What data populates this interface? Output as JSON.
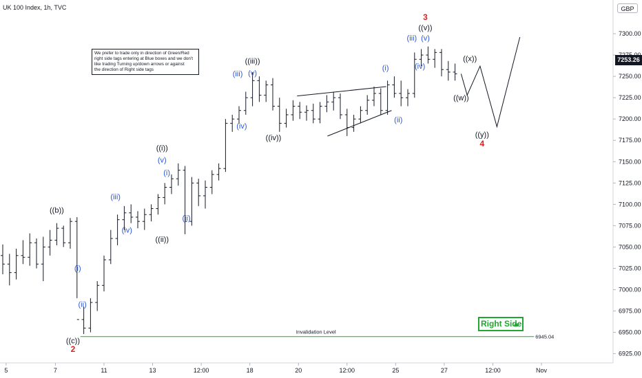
{
  "header": {
    "title": "UK 100 Index, 1h, TVC"
  },
  "currency": "GBP",
  "last_price": "7253.26",
  "note": "We prefer to trade only in direction of Green/Red\nright side tags entering at Blue boxes and we don't\nlike trading Turning up/down arrows or against\nthe direction of Right side tags",
  "right_side": {
    "label": "Right Side",
    "arrow": "▲"
  },
  "colors": {
    "bar": "#131722",
    "blue": "#2a57d8",
    "red": "#e02020",
    "green": "#1fa82f"
  },
  "chart_data": {
    "type": "ohlc",
    "ylim": [
      6915,
      7325
    ],
    "yticks": [
      "6925.00",
      "6950.00",
      "6975.00",
      "7000.00",
      "7025.00",
      "7050.00",
      "7075.00",
      "7100.00",
      "7125.00",
      "7150.00",
      "7175.00",
      "7200.00",
      "7225.00",
      "7250.00",
      "7275.00",
      "7300.00"
    ],
    "xticks": [
      {
        "label": "5",
        "x": 0.5
      },
      {
        "label": "7",
        "x": 7.8
      },
      {
        "label": "11",
        "x": 15
      },
      {
        "label": "13",
        "x": 22.2
      },
      {
        "label": "12:00",
        "x": 29.4
      },
      {
        "label": "18",
        "x": 36.6
      },
      {
        "label": "20",
        "x": 43.8
      },
      {
        "label": "12:00",
        "x": 51
      },
      {
        "label": "25",
        "x": 58.2
      },
      {
        "label": "27",
        "x": 65.4
      },
      {
        "label": "12:00",
        "x": 72.6
      },
      {
        "label": "Nov",
        "x": 79.8
      }
    ],
    "series": [
      {
        "values": [
          [
            7040,
            7053,
            7018,
            7030
          ],
          [
            7030,
            7042,
            7005,
            7020
          ],
          [
            7020,
            7048,
            7012,
            7040
          ],
          [
            7040,
            7058,
            7030,
            7038
          ],
          [
            7038,
            7066,
            7028,
            7055
          ],
          [
            7055,
            7060,
            7025,
            7030
          ],
          [
            7030,
            7062,
            7010,
            7050
          ],
          [
            7050,
            7070,
            7040,
            7058
          ],
          [
            7058,
            7078,
            7052,
            7072
          ],
          [
            7072,
            7075,
            7050,
            7055
          ],
          [
            7055,
            7084,
            7048,
            7080
          ],
          [
            7080,
            7085,
            6990,
            6965
          ],
          [
            6965,
            6980,
            6948,
            6955
          ],
          [
            6955,
            6990,
            6950,
            6985
          ],
          [
            6985,
            7010,
            6975,
            7005
          ],
          [
            7005,
            7040,
            6998,
            7035
          ],
          [
            7035,
            7070,
            7030,
            7060
          ],
          [
            7060,
            7088,
            7052,
            7082
          ],
          [
            7082,
            7098,
            7070,
            7090
          ],
          [
            7090,
            7100,
            7078,
            7085
          ],
          [
            7085,
            7092,
            7072,
            7080
          ],
          [
            7080,
            7095,
            7070,
            7088
          ],
          [
            7088,
            7100,
            7080,
            7095
          ],
          [
            7095,
            7112,
            7088,
            7108
          ],
          [
            7108,
            7125,
            7100,
            7120
          ],
          [
            7120,
            7135,
            7112,
            7130
          ],
          [
            7130,
            7148,
            7122,
            7140
          ],
          [
            7140,
            7145,
            7065,
            7080
          ],
          [
            7080,
            7132,
            7075,
            7125
          ],
          [
            7125,
            7130,
            7098,
            7110
          ],
          [
            7110,
            7128,
            7095,
            7120
          ],
          [
            7120,
            7140,
            7112,
            7135
          ],
          [
            7135,
            7148,
            7128,
            7142
          ],
          [
            7142,
            7200,
            7138,
            7195
          ],
          [
            7195,
            7205,
            7185,
            7200
          ],
          [
            7200,
            7215,
            7195,
            7210
          ],
          [
            7210,
            7232,
            7205,
            7225
          ],
          [
            7225,
            7255,
            7215,
            7245
          ],
          [
            7245,
            7250,
            7220,
            7228
          ],
          [
            7228,
            7245,
            7220,
            7240
          ],
          [
            7240,
            7248,
            7210,
            7215
          ],
          [
            7215,
            7225,
            7185,
            7195
          ],
          [
            7195,
            7212,
            7190,
            7205
          ],
          [
            7205,
            7222,
            7198,
            7215
          ],
          [
            7215,
            7220,
            7200,
            7208
          ],
          [
            7208,
            7216,
            7198,
            7210
          ],
          [
            7210,
            7218,
            7195,
            7200
          ],
          [
            7200,
            7220,
            7195,
            7215
          ],
          [
            7215,
            7228,
            7208,
            7220
          ],
          [
            7220,
            7232,
            7210,
            7225
          ],
          [
            7225,
            7230,
            7200,
            7205
          ],
          [
            7205,
            7212,
            7180,
            7190
          ],
          [
            7190,
            7205,
            7185,
            7200
          ],
          [
            7200,
            7215,
            7195,
            7210
          ],
          [
            7210,
            7228,
            7205,
            7222
          ],
          [
            7222,
            7238,
            7215,
            7230
          ],
          [
            7230,
            7236,
            7205,
            7210
          ],
          [
            7210,
            7245,
            7205,
            7240
          ],
          [
            7240,
            7250,
            7225,
            7230
          ],
          [
            7230,
            7245,
            7215,
            7225
          ],
          [
            7225,
            7235,
            7215,
            7230
          ],
          [
            7230,
            7278,
            7225,
            7270
          ],
          [
            7270,
            7282,
            7262,
            7275
          ],
          [
            7275,
            7285,
            7265,
            7270
          ],
          [
            7270,
            7282,
            7260,
            7278
          ],
          [
            7278,
            7282,
            7250,
            7258
          ],
          [
            7258,
            7268,
            7245,
            7255
          ],
          [
            7255,
            7265,
            7245,
            7253
          ]
        ]
      }
    ],
    "reference_line": {
      "value": 6945.04,
      "label": "6945.04",
      "caption": "Invalidation Level"
    },
    "trendlines": [
      {
        "from": [
          43.6,
          7227
        ],
        "to": [
          56.8,
          7238
        ]
      },
      {
        "from": [
          48.1,
          7180
        ],
        "to": [
          57.6,
          7210
        ]
      }
    ],
    "projection": [
      [
        67.9,
        7253
      ],
      [
        68.8,
        7228
      ],
      [
        70.7,
        7262
      ],
      [
        73.2,
        7191
      ],
      [
        76.6,
        7296
      ]
    ],
    "annotations": [
      {
        "text": "((b))",
        "x": 8.0,
        "y": 7090,
        "color": "#131722"
      },
      {
        "text": "((c))",
        "x": 10.4,
        "y": 6937,
        "color": "#131722"
      },
      {
        "text": "2",
        "x": 10.4,
        "y": 6927,
        "color": "#e02020"
      },
      {
        "text": "(i)",
        "x": 11.1,
        "y": 7022,
        "color": "#2a57d8"
      },
      {
        "text": "(ii)",
        "x": 11.8,
        "y": 6980,
        "color": "#2a57d8"
      },
      {
        "text": "(iii)",
        "x": 16.7,
        "y": 7106,
        "color": "#2a57d8"
      },
      {
        "text": "(iv)",
        "x": 18.4,
        "y": 7067,
        "color": "#2a57d8"
      },
      {
        "text": "((i))",
        "x": 23.6,
        "y": 7163,
        "color": "#131722"
      },
      {
        "text": "(v)",
        "x": 23.6,
        "y": 7149,
        "color": "#2a57d8"
      },
      {
        "text": "(i)",
        "x": 24.3,
        "y": 7134,
        "color": "#2a57d8"
      },
      {
        "text": "((ii))",
        "x": 23.6,
        "y": 7056,
        "color": "#131722"
      },
      {
        "text": "(ii)",
        "x": 27.2,
        "y": 7081,
        "color": "#2a57d8"
      },
      {
        "text": "((iii))",
        "x": 37.0,
        "y": 7265,
        "color": "#131722"
      },
      {
        "text": "(v)",
        "x": 37.0,
        "y": 7251,
        "color": "#2a57d8"
      },
      {
        "text": "(iii)",
        "x": 34.8,
        "y": 7250,
        "color": "#2a57d8"
      },
      {
        "text": "(iv)",
        "x": 35.4,
        "y": 7189,
        "color": "#2a57d8"
      },
      {
        "text": "((iv))",
        "x": 40.1,
        "y": 7175,
        "color": "#131722"
      },
      {
        "text": "(i)",
        "x": 56.7,
        "y": 7257,
        "color": "#2a57d8"
      },
      {
        "text": "(ii)",
        "x": 58.6,
        "y": 7196,
        "color": "#2a57d8"
      },
      {
        "text": "(iii)",
        "x": 60.6,
        "y": 7292,
        "color": "#2a57d8"
      },
      {
        "text": "(iv)",
        "x": 61.8,
        "y": 7259,
        "color": "#2a57d8"
      },
      {
        "text": "((v))",
        "x": 62.6,
        "y": 7304,
        "color": "#131722"
      },
      {
        "text": "(v)",
        "x": 62.6,
        "y": 7292,
        "color": "#2a57d8"
      },
      {
        "text": "3",
        "x": 62.6,
        "y": 7316,
        "color": "#e02020"
      },
      {
        "text": "((x))",
        "x": 69.2,
        "y": 7268,
        "color": "#131722"
      },
      {
        "text": "((w))",
        "x": 67.9,
        "y": 7222,
        "color": "#131722"
      },
      {
        "text": "((y))",
        "x": 71.0,
        "y": 7179,
        "color": "#131722"
      },
      {
        "text": "4",
        "x": 71.0,
        "y": 7168,
        "color": "#e02020"
      }
    ]
  }
}
